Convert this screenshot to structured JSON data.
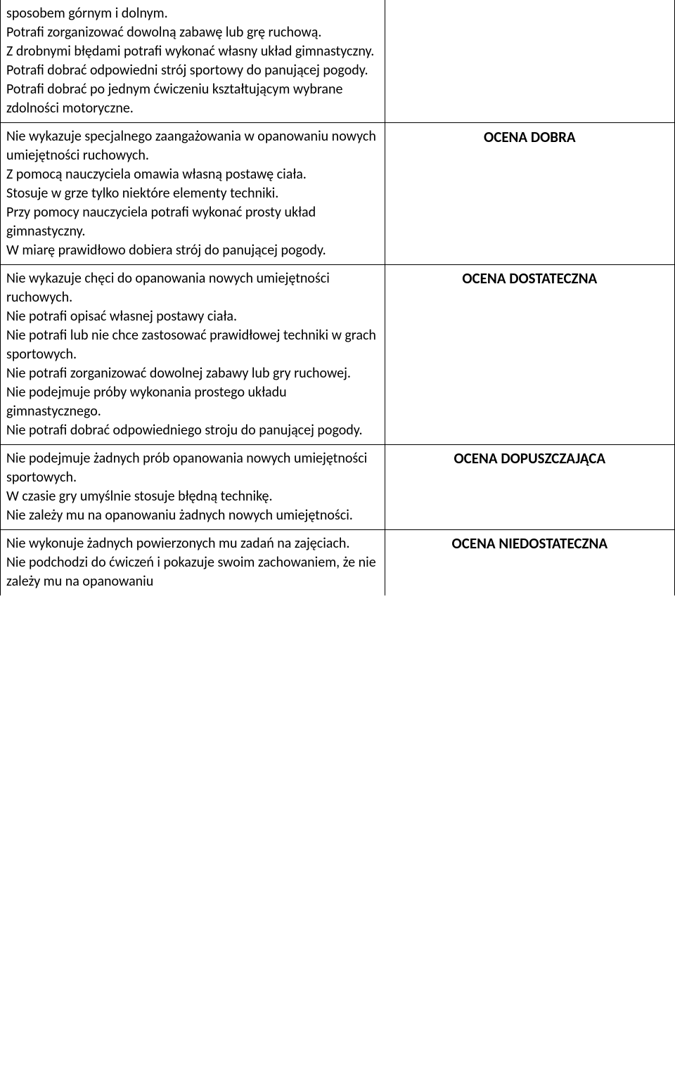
{
  "rows": [
    {
      "desc": "sposobem górnym i dolnym.\nPotrafi zorganizować dowolną zabawę lub grę ruchową.\nZ drobnymi błędami potrafi wykonać własny układ gimnastyczny.\nPotrafi dobrać odpowiedni strój sportowy do panującej pogody.\nPotrafi dobrać po jednym ćwiczeniu kształtującym wybrane zdolności motoryczne.",
      "grade": ""
    },
    {
      "desc": "Nie wykazuje specjalnego zaangażowania w opanowaniu nowych umiejętności ruchowych.\nZ pomocą nauczyciela omawia własną postawę ciała.\nStosuje w grze tylko niektóre elementy techniki.\nPrzy pomocy nauczyciela potrafi wykonać prosty układ gimnastyczny.\nW miarę prawidłowo dobiera strój do panującej pogody.",
      "grade": "OCENA DOBRA"
    },
    {
      "desc": "Nie wykazuje chęci do opanowania nowych umiejętności ruchowych.\nNie potrafi opisać własnej postawy ciała.\nNie potrafi lub nie chce zastosować prawidłowej techniki w grach sportowych.\nNie potrafi zorganizować dowolnej zabawy lub gry ruchowej.\nNie podejmuje próby wykonania prostego układu gimnastycznego.\nNie potrafi dobrać odpowiedniego stroju do panującej pogody.",
      "grade": "OCENA\nDOSTATECZNA"
    },
    {
      "desc": "Nie podejmuje żadnych prób opanowania nowych umiejętności sportowych.\nW czasie gry umyślnie stosuje błędną technikę.\nNie zależy mu na opanowaniu żadnych nowych umiejętności.",
      "grade": "OCENA\nDOPUSZCZAJĄCA"
    },
    {
      "desc": "Nie wykonuje żadnych powierzonych mu zadań na zajęciach.\nNie podchodzi do ćwiczeń i pokazuje swoim zachowaniem, że nie zależy mu na opanowaniu",
      "grade": "OCENA\nNIEDOSTATECZNA"
    }
  ]
}
